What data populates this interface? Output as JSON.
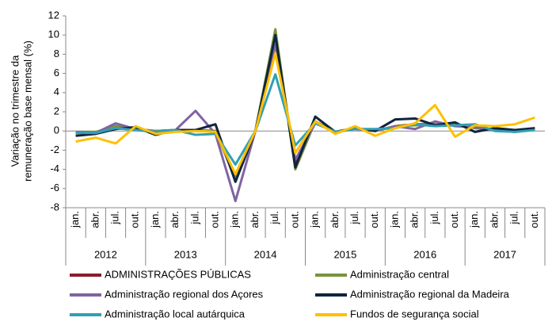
{
  "chart_data": {
    "type": "line",
    "y_label": [
      "Variação no trimestre da",
      "remuneração base mensal (%)"
    ],
    "categories": [
      "jan.",
      "abr.",
      "jul.",
      "out.",
      "jan.",
      "abr.",
      "jul.",
      "out.",
      "jan.",
      "abr.",
      "jul.",
      "out.",
      "jan.",
      "abr.",
      "jul.",
      "out.",
      "jan.",
      "abr.",
      "jul.",
      "out.",
      "jan.",
      "abr.",
      "jul.",
      "out."
    ],
    "years": [
      "2012",
      "2013",
      "2014",
      "2015",
      "2016",
      "2017"
    ],
    "ylim": [
      -8,
      12
    ],
    "yticks": [
      -8,
      -6,
      -4,
      -2,
      0,
      2,
      4,
      6,
      8,
      10,
      12
    ],
    "series": [
      {
        "name": "ADMINISTRAÇÕES PÚBLICAS",
        "color": "#8b1a2b",
        "values": [
          -0.2,
          -0.2,
          0.5,
          0.2,
          0,
          0.1,
          0.1,
          0,
          -4.8,
          0,
          10,
          -3.5,
          1,
          -0.1,
          0.3,
          0,
          0.5,
          0.7,
          0.7,
          0.7,
          0.3,
          0.2,
          0,
          0.2
        ]
      },
      {
        "name": "Administração central",
        "color": "#77933c",
        "values": [
          -0.1,
          -0.1,
          0.5,
          0.2,
          0,
          0.1,
          0.1,
          0,
          -5,
          0,
          10.6,
          -4,
          1,
          -0.2,
          0.3,
          0,
          0.5,
          0.6,
          0.7,
          0.7,
          0.3,
          0.1,
          -0.1,
          0.2
        ]
      },
      {
        "name": "Administração regional dos Açores",
        "color": "#8064a2",
        "values": [
          -0.1,
          -0.2,
          0.8,
          0.2,
          -0.1,
          0.1,
          2.1,
          -0.3,
          -7.3,
          0,
          9,
          -3,
          0.8,
          -0.1,
          0.2,
          0,
          0.5,
          0.2,
          1,
          0.5,
          0.4,
          0.1,
          0,
          0.2
        ]
      },
      {
        "name": "Administração regional da Madeira",
        "color": "#0f243e",
        "values": [
          -0.5,
          -0.3,
          0.2,
          0.4,
          -0.4,
          0.1,
          0.1,
          0.7,
          -5.3,
          0,
          10,
          -3.8,
          1.5,
          -0.1,
          0.3,
          0,
          1.2,
          1.3,
          0.6,
          0.9,
          -0.1,
          0.3,
          0.1,
          0.3
        ]
      },
      {
        "name": "Administração local autárquica",
        "color": "#31a0b4",
        "values": [
          -0.2,
          -0.2,
          0.3,
          0.1,
          -0.1,
          0.1,
          -0.4,
          -0.3,
          -3.5,
          0,
          5.9,
          -1.5,
          0.8,
          -0.1,
          0.2,
          0.2,
          0.3,
          0.7,
          0.5,
          0.6,
          0.7,
          0,
          -0.1,
          0.1
        ]
      },
      {
        "name": "Fundos de segurança social",
        "color": "#ffc000",
        "values": [
          -1.1,
          -0.7,
          -1.3,
          0.5,
          -0.3,
          -0.1,
          0,
          -0.1,
          -4.5,
          0,
          8.1,
          -2.3,
          1,
          -0.3,
          0.5,
          -0.5,
          0.3,
          0.8,
          2.7,
          -0.6,
          0.6,
          0.5,
          0.7,
          1.4
        ]
      }
    ]
  }
}
